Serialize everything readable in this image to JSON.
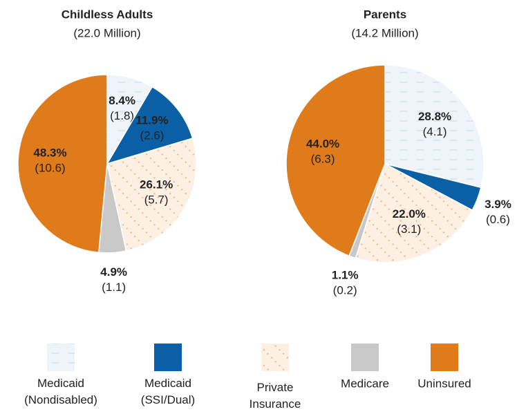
{
  "legend": {
    "categories": [
      "Medicaid (Nondisabled)",
      "Medicaid (SSI/Dual)",
      "Private Insurance",
      "Medicare",
      "Uninsured"
    ],
    "colors": [
      "#eef4fa",
      "#0b5fa5",
      "#fdf0e3",
      "#c8c8c8",
      "#e07b1c"
    ]
  },
  "chart_data": [
    {
      "type": "pie",
      "title": "Childless Adults",
      "subtitle": "(22.0 Million)",
      "values": [
        8.4,
        11.9,
        26.1,
        4.9,
        48.3
      ],
      "value_labels": [
        "8.4%",
        "11.9%",
        "26.1%",
        "4.9%",
        "48.3%"
      ],
      "counts": [
        1.8,
        2.6,
        5.7,
        1.1,
        10.6
      ],
      "count_labels": [
        "(1.8)",
        "(2.6)",
        "(5.7)",
        "(1.1)",
        "(10.6)"
      ]
    },
    {
      "type": "pie",
      "title": "Parents",
      "subtitle": "(14.2 Million)",
      "values": [
        28.8,
        3.9,
        22.0,
        1.1,
        44.0
      ],
      "value_labels": [
        "28.8%",
        "3.9%",
        "22.0%",
        "1.1%",
        "44.0%"
      ],
      "counts": [
        4.1,
        0.6,
        3.1,
        0.2,
        6.3
      ],
      "count_labels": [
        "(4.1)",
        "(0.6)",
        "(3.1)",
        "(0.2)",
        "(6.3)"
      ]
    }
  ]
}
